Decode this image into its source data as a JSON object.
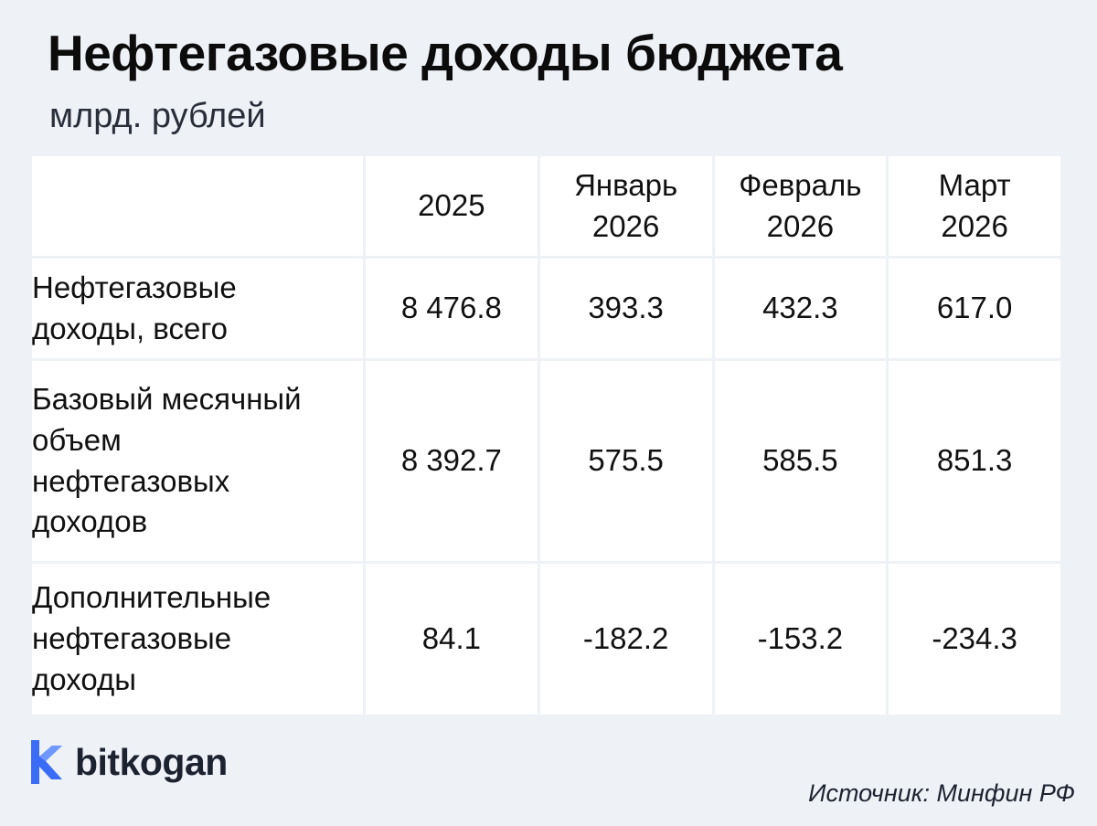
{
  "header": {
    "title": "Нефтегазовые доходы бюджета",
    "subtitle": "млрд. рублей"
  },
  "chart_data": {
    "type": "table",
    "columns": [
      "2025",
      "Январь 2026",
      "Февраль 2026",
      "Март 2026"
    ],
    "column_lines": [
      [
        "2025"
      ],
      [
        "Январь",
        "2026"
      ],
      [
        "Февраль",
        "2026"
      ],
      [
        "Март",
        "2026"
      ]
    ],
    "rows": [
      {
        "label": "Нефтегазовые доходы, всего",
        "label_lines": [
          "Нефтегазовые",
          "доходы, всего"
        ],
        "values": [
          "8 476.8",
          "393.3",
          "432.3",
          "617.0"
        ]
      },
      {
        "label": "Базовый месячный объем нефтегазовых доходов",
        "label_lines": [
          "Базовый месячный",
          "объем",
          "нефтегазовых",
          "доходов"
        ],
        "values": [
          "8 392.7",
          "575.5",
          "585.5",
          "851.3"
        ]
      },
      {
        "label": "Дополнительные нефтегазовые доходы",
        "label_lines": [
          "Дополнительные",
          "нефтегазовые",
          "доходы"
        ],
        "values": [
          "84.1",
          "-182.2",
          "-153.2",
          "-234.3"
        ]
      }
    ]
  },
  "footer": {
    "brand": "bitkogan",
    "brand_color": "#3b6cf6",
    "source": "Источник: Минфин РФ"
  }
}
